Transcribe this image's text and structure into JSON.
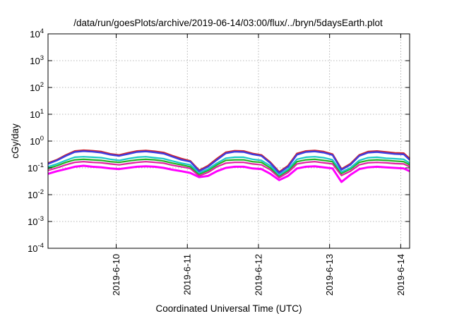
{
  "chart_data": {
    "type": "line",
    "title": "/data/run/goesPlots/archive/2019-06-14/03:00/flux/../bryn/5daysEarth.plot",
    "xlabel": "Coordinated Universal Time (UTC)",
    "ylabel": "cGy/day",
    "yscale": "log",
    "ylim": [
      0.0001,
      10000
    ],
    "y_ticks": [
      {
        "exp": "-4",
        "value": 0.0001
      },
      {
        "exp": "-3",
        "value": 0.001
      },
      {
        "exp": "-2",
        "value": 0.01
      },
      {
        "exp": "-1",
        "value": 0.1
      },
      {
        "exp": "0",
        "value": 1
      },
      {
        "exp": "1",
        "value": 10
      },
      {
        "exp": "2",
        "value": 100
      },
      {
        "exp": "3",
        "value": 1000
      },
      {
        "exp": "4",
        "value": 10000
      }
    ],
    "y_tick_base": "10",
    "xlim": [
      "2019-06-09 01:00",
      "2019-06-14 03:00"
    ],
    "x_ticks": [
      "2019-6-10",
      "2019-6-11",
      "2019-6-12",
      "2019-6-13",
      "2019-6-14"
    ],
    "grid": true,
    "colors": [
      "#d0202a",
      "#3d3de0",
      "#19c7c7",
      "#22b322",
      "#e020a0",
      "#ff00ff"
    ],
    "x": [
      "2019-06-09 01:00",
      "2019-06-09 04:00",
      "2019-06-09 07:00",
      "2019-06-09 10:00",
      "2019-06-09 13:00",
      "2019-06-09 16:00",
      "2019-06-09 19:00",
      "2019-06-09 22:00",
      "2019-06-10 01:00",
      "2019-06-10 04:00",
      "2019-06-10 07:00",
      "2019-06-10 10:00",
      "2019-06-10 13:00",
      "2019-06-10 16:00",
      "2019-06-10 19:00",
      "2019-06-10 22:00",
      "2019-06-11 01:00",
      "2019-06-11 04:00",
      "2019-06-11 07:00",
      "2019-06-11 10:00",
      "2019-06-11 13:00",
      "2019-06-11 16:00",
      "2019-06-11 19:00",
      "2019-06-11 22:00",
      "2019-06-12 01:00",
      "2019-06-12 04:00",
      "2019-06-12 07:00",
      "2019-06-12 10:00",
      "2019-06-12 13:00",
      "2019-06-12 16:00",
      "2019-06-12 19:00",
      "2019-06-12 22:00",
      "2019-06-13 01:00",
      "2019-06-13 04:00",
      "2019-06-13 07:00",
      "2019-06-13 10:00",
      "2019-06-13 13:00",
      "2019-06-13 16:00",
      "2019-06-13 19:00",
      "2019-06-13 22:00",
      "2019-06-14 01:00",
      "2019-06-14 03:00"
    ],
    "series": [
      {
        "values": [
          0.15,
          0.2,
          0.3,
          0.42,
          0.45,
          0.43,
          0.4,
          0.33,
          0.3,
          0.36,
          0.42,
          0.44,
          0.41,
          0.37,
          0.28,
          0.22,
          0.18,
          0.08,
          0.12,
          0.22,
          0.38,
          0.43,
          0.42,
          0.34,
          0.3,
          0.16,
          0.07,
          0.12,
          0.34,
          0.42,
          0.44,
          0.4,
          0.32,
          0.09,
          0.14,
          0.3,
          0.4,
          0.42,
          0.39,
          0.36,
          0.35,
          0.22
        ]
      },
      {
        "values": [
          0.14,
          0.19,
          0.28,
          0.39,
          0.42,
          0.4,
          0.37,
          0.31,
          0.28,
          0.33,
          0.39,
          0.41,
          0.38,
          0.34,
          0.26,
          0.2,
          0.17,
          0.075,
          0.11,
          0.2,
          0.35,
          0.4,
          0.39,
          0.32,
          0.28,
          0.15,
          0.065,
          0.11,
          0.31,
          0.39,
          0.41,
          0.37,
          0.3,
          0.085,
          0.13,
          0.28,
          0.37,
          0.39,
          0.36,
          0.33,
          0.32,
          0.2
        ]
      },
      {
        "values": [
          0.11,
          0.14,
          0.19,
          0.25,
          0.26,
          0.25,
          0.24,
          0.21,
          0.19,
          0.22,
          0.25,
          0.26,
          0.24,
          0.22,
          0.18,
          0.15,
          0.13,
          0.065,
          0.09,
          0.15,
          0.23,
          0.25,
          0.25,
          0.21,
          0.19,
          0.12,
          0.055,
          0.09,
          0.21,
          0.25,
          0.26,
          0.24,
          0.2,
          0.07,
          0.1,
          0.19,
          0.24,
          0.25,
          0.23,
          0.22,
          0.21,
          0.15
        ]
      },
      {
        "values": [
          0.095,
          0.12,
          0.16,
          0.2,
          0.21,
          0.2,
          0.19,
          0.17,
          0.16,
          0.18,
          0.2,
          0.21,
          0.2,
          0.18,
          0.15,
          0.13,
          0.11,
          0.058,
          0.08,
          0.13,
          0.19,
          0.2,
          0.2,
          0.17,
          0.16,
          0.1,
          0.05,
          0.08,
          0.17,
          0.2,
          0.21,
          0.19,
          0.17,
          0.062,
          0.09,
          0.16,
          0.19,
          0.2,
          0.19,
          0.18,
          0.17,
          0.13
        ]
      },
      {
        "values": [
          0.08,
          0.1,
          0.13,
          0.16,
          0.17,
          0.16,
          0.155,
          0.14,
          0.13,
          0.145,
          0.16,
          0.17,
          0.16,
          0.15,
          0.125,
          0.11,
          0.095,
          0.05,
          0.068,
          0.11,
          0.15,
          0.16,
          0.16,
          0.14,
          0.13,
          0.085,
          0.043,
          0.068,
          0.14,
          0.16,
          0.17,
          0.155,
          0.14,
          0.052,
          0.075,
          0.13,
          0.155,
          0.16,
          0.155,
          0.145,
          0.14,
          0.11
        ]
      },
      {
        "values": [
          0.06,
          0.075,
          0.09,
          0.11,
          0.12,
          0.11,
          0.105,
          0.095,
          0.09,
          0.1,
          0.11,
          0.115,
          0.11,
          0.1,
          0.085,
          0.075,
          0.065,
          0.045,
          0.05,
          0.075,
          0.1,
          0.11,
          0.11,
          0.095,
          0.09,
          0.06,
          0.035,
          0.05,
          0.095,
          0.11,
          0.115,
          0.105,
          0.095,
          0.03,
          0.055,
          0.09,
          0.105,
          0.11,
          0.105,
          0.1,
          0.095,
          0.075
        ]
      }
    ]
  }
}
